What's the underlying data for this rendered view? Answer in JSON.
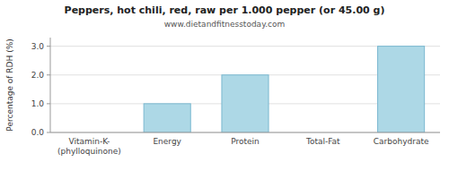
{
  "chart_data": {
    "type": "bar",
    "title": "Peppers, hot chili, red, raw per 1.000 pepper (or 45.00 g)",
    "subtitle": "www.dietandfitnesstoday.com",
    "categories": [
      "Vitamin-K-(phylloquinone)",
      "Energy",
      "Protein",
      "Total-Fat",
      "Carbohydrate"
    ],
    "values": [
      0.0,
      1.0,
      2.0,
      0.0,
      3.0
    ],
    "color": "#add8e6",
    "ylabel": "Percentage of RDH (%)",
    "ylim": [
      0,
      3.3
    ],
    "yticks": [
      {
        "value": 0.0,
        "label": "0.0"
      },
      {
        "value": 1.0,
        "label": "1.0"
      },
      {
        "value": 2.0,
        "label": "2.0"
      },
      {
        "value": 3.0,
        "label": "3.0"
      }
    ],
    "grid": true
  }
}
